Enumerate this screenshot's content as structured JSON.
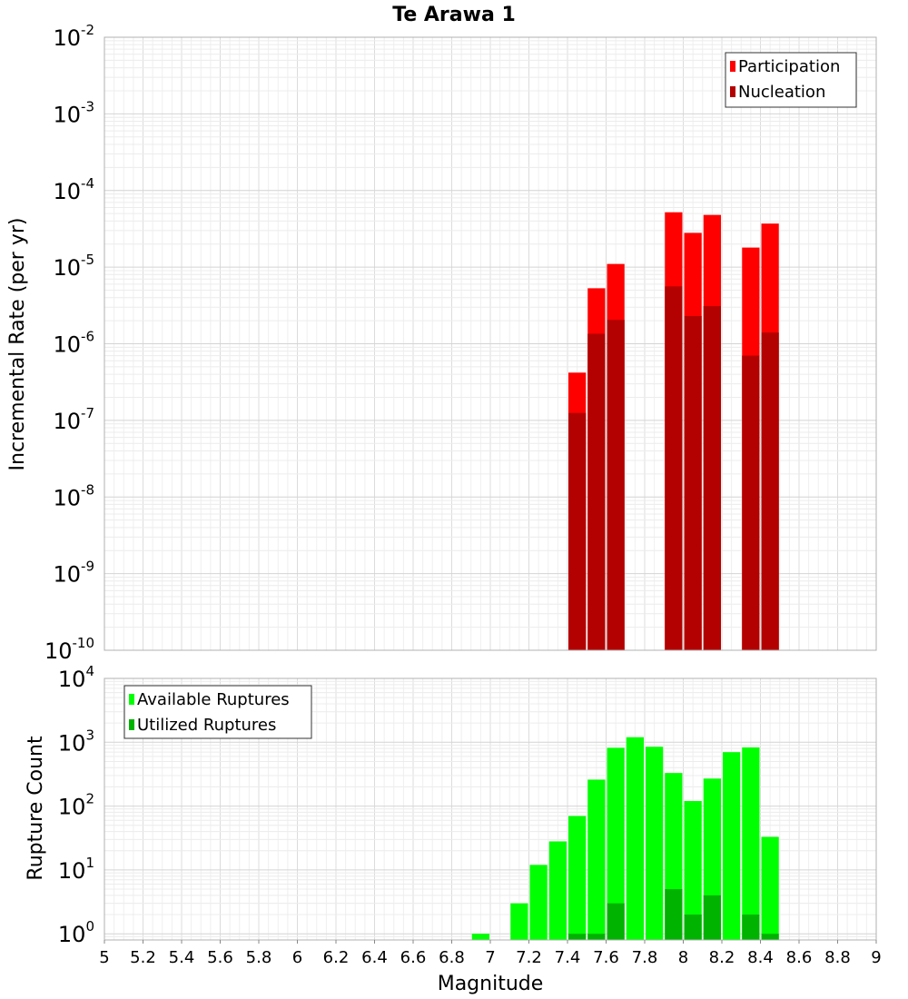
{
  "chart_data": [
    {
      "type": "bar",
      "title": "Te Arawa 1",
      "xlabel": "",
      "ylabel": "Incremental Rate (per yr)",
      "yscale": "log",
      "ylim": [
        1e-10,
        0.01
      ],
      "y_tick_exponents": [
        "-2",
        "-3",
        "-4",
        "-5",
        "-6",
        "-7",
        "-8",
        "-9",
        "-10"
      ],
      "y_tick_base": "10",
      "xlim": [
        5,
        9
      ],
      "grid": true,
      "legend_position": "top-right",
      "bar_width": 0.1,
      "x": [
        7.45,
        7.55,
        7.65,
        7.95,
        8.05,
        8.15,
        8.35,
        8.45
      ],
      "series": [
        {
          "name": "Participation",
          "color": "#ff0000",
          "values": [
            4.2e-07,
            5.3e-06,
            1.1e-05,
            5.2e-05,
            2.8e-05,
            4.8e-05,
            1.8e-05,
            3.7e-05
          ]
        },
        {
          "name": "Nucleation",
          "color": "#b30000",
          "values": [
            1.25e-07,
            1.35e-06,
            2.05e-06,
            5.6e-06,
            2.3e-06,
            3.1e-06,
            7e-07,
            1.4e-06
          ]
        }
      ]
    },
    {
      "type": "bar",
      "title": "",
      "xlabel": "Magnitude",
      "ylabel": "Rupture Count",
      "yscale": "log",
      "ylim": [
        0.8,
        10000
      ],
      "y_tick_exponents": [
        "4",
        "3",
        "2",
        "1",
        "0"
      ],
      "y_tick_base": "10",
      "xlim": [
        5,
        9
      ],
      "x_ticks": [
        "5",
        "5.2",
        "5.4",
        "5.6",
        "5.8",
        "6",
        "6.2",
        "6.4",
        "6.6",
        "6.8",
        "7",
        "7.2",
        "7.4",
        "7.6",
        "7.8",
        "8",
        "8.2",
        "8.4",
        "8.6",
        "8.8",
        "9"
      ],
      "grid": true,
      "legend_position": "top-left",
      "bar_width": 0.1,
      "x": [
        6.95,
        7.15,
        7.25,
        7.35,
        7.45,
        7.55,
        7.65,
        7.75,
        7.85,
        7.95,
        8.05,
        8.15,
        8.25,
        8.35,
        8.45
      ],
      "series": [
        {
          "name": "Available Ruptures",
          "color": "#00ff00",
          "values": [
            1,
            3,
            12,
            28,
            70,
            260,
            820,
            1200,
            850,
            330,
            120,
            270,
            700,
            830,
            33
          ]
        },
        {
          "name": "Utilized Ruptures",
          "color": "#00b300",
          "values": [
            0,
            0,
            0,
            0,
            1,
            1,
            3,
            0,
            0,
            5,
            2,
            4,
            0,
            2,
            1
          ]
        }
      ]
    }
  ]
}
